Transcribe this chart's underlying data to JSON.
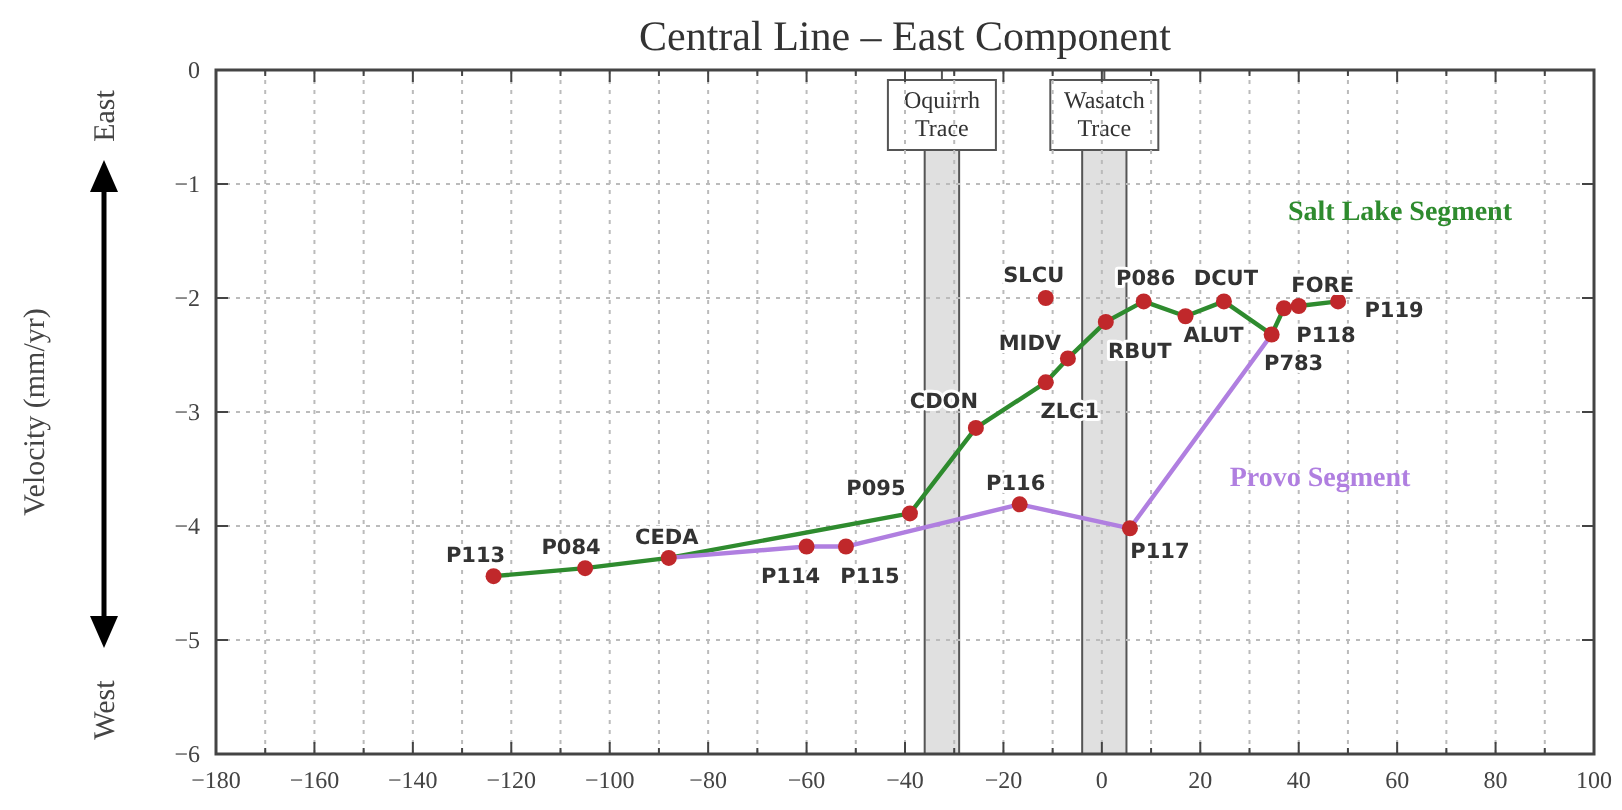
{
  "chart_data": {
    "type": "line",
    "title": "Central Line – East Component",
    "ylabel": "Velocity (mm/yr)",
    "xlim": [
      -180,
      100
    ],
    "ylim": [
      -6,
      0
    ],
    "xticks": [
      -180,
      {
        "value": -170,
        "label": null
      },
      -160,
      {
        "value": -150,
        "label": null
      },
      -140,
      {
        "value": -130,
        "label": null
      },
      -120,
      {
        "value": -110,
        "label": null
      },
      -100,
      {
        "value": -90,
        "label": null
      },
      -80,
      {
        "value": -70,
        "label": null
      },
      -60,
      {
        "value": -50,
        "label": null
      },
      -40,
      {
        "value": -30,
        "label": null
      },
      -20,
      {
        "value": -10,
        "label": null
      },
      0,
      {
        "value": 10,
        "label": null
      },
      20,
      {
        "value": 30,
        "label": null
      },
      40,
      {
        "value": 50,
        "label": null
      },
      60,
      {
        "value": 70,
        "label": null
      },
      80,
      {
        "value": 90,
        "label": null
      },
      100
    ],
    "yticks": [
      -6,
      -5,
      -4,
      -3,
      -2,
      -1,
      0
    ],
    "grid": true,
    "bands": [
      {
        "axis": "x",
        "from": -36,
        "to": -29,
        "label": "Oquirrh Trace",
        "color": "#e0e0e0"
      },
      {
        "axis": "x",
        "from": -4,
        "to": 5,
        "label": "Wasatch Trace",
        "color": "#e0e0e0"
      }
    ],
    "series": [
      {
        "name": "Salt Lake Segment",
        "color": "#2e8b2e",
        "marker": "none",
        "x": [
          -123.6,
          -105,
          -88,
          -39,
          -25.6,
          -11.4,
          -6.9,
          0.8,
          8.5,
          17,
          24.8,
          34.5,
          37,
          40,
          48
        ],
        "values": [
          -4.44,
          -4.37,
          -4.28,
          -3.89,
          -3.14,
          -2.74,
          -2.53,
          -2.21,
          -2.03,
          -2.16,
          -2.03,
          -2.32,
          -2.09,
          -2.07,
          -2.03
        ]
      },
      {
        "name": "Provo Segment",
        "color": "#b07fe0",
        "marker": "none",
        "x": [
          -88,
          -60,
          -52,
          -16.7,
          5.7,
          34.5
        ],
        "values": [
          -4.28,
          -4.18,
          -4.18,
          -3.81,
          -4.02,
          -2.32
        ]
      },
      {
        "type": "scatter",
        "color": "#c0282b",
        "marker": "circle",
        "x": [
          -123.6,
          -105,
          -88,
          -60,
          -52,
          -39,
          -25.6,
          -16.7,
          -11.4,
          -11.4,
          -6.9,
          0.8,
          5.7,
          8.5,
          17,
          24.8,
          34.5,
          37,
          40,
          48
        ],
        "values": [
          -4.44,
          -4.37,
          -4.28,
          -4.18,
          -4.18,
          -3.89,
          -3.14,
          -3.81,
          -2.0,
          -2.74,
          -2.53,
          -2.21,
          -4.02,
          -2.03,
          -2.16,
          -2.03,
          -2.32,
          -2.09,
          -2.07,
          -2.03
        ]
      }
    ],
    "annotations": [
      {
        "text": "P113",
        "x": -123.6,
        "y": -4.44
      },
      {
        "text": "P084",
        "x": -105,
        "y": -4.37
      },
      {
        "text": "CEDA",
        "x": -88,
        "y": -4.28
      },
      {
        "text": "P114",
        "x": -60,
        "y": -4.18
      },
      {
        "text": "P115",
        "x": -52,
        "y": -4.18
      },
      {
        "text": "P095",
        "x": -39,
        "y": -3.89
      },
      {
        "text": "CDON",
        "x": -25.6,
        "y": -3.14
      },
      {
        "text": "P116",
        "x": -16.7,
        "y": -3.81
      },
      {
        "text": "SLCU",
        "x": -11.4,
        "y": -2.0
      },
      {
        "text": "ZLC1",
        "x": -11.4,
        "y": -2.74
      },
      {
        "text": "MIDV",
        "x": -6.9,
        "y": -2.53
      },
      {
        "text": "RBUT",
        "x": 0.8,
        "y": -2.21
      },
      {
        "text": "P117",
        "x": 5.7,
        "y": -4.02
      },
      {
        "text": "P086",
        "x": 8.5,
        "y": -2.03
      },
      {
        "text": "ALUT",
        "x": 17,
        "y": -2.16
      },
      {
        "text": "DCUT",
        "x": 24.8,
        "y": -2.03
      },
      {
        "text": "P783",
        "x": 34.5,
        "y": -2.32
      },
      {
        "text": "P118",
        "x": 37,
        "y": -2.09
      },
      {
        "text": "FORE",
        "x": 40,
        "y": -2.07
      },
      {
        "text": "P119",
        "x": 48,
        "y": -2.03
      },
      "East",
      "West"
    ]
  }
}
